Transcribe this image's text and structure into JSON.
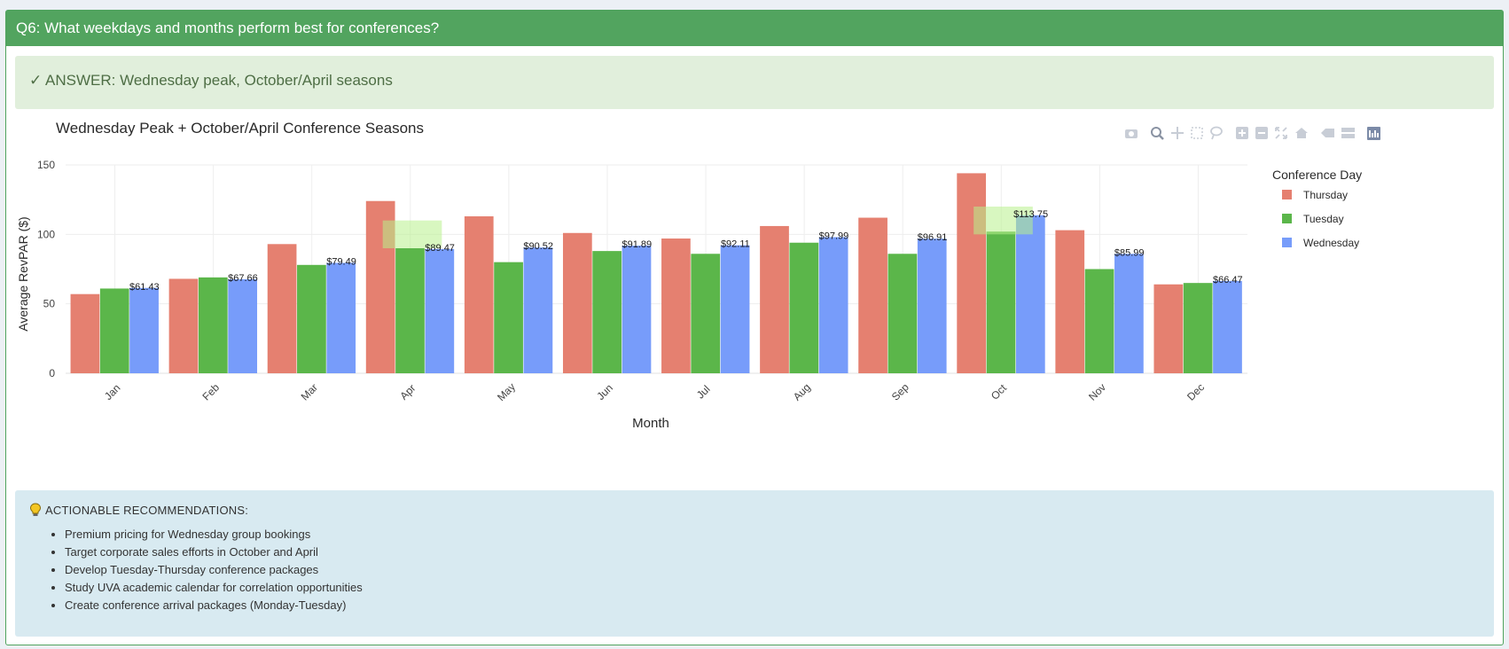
{
  "header": {
    "title": "Q6: What weekdays and months perform best for conferences?"
  },
  "answer": {
    "text": "✓ ANSWER: Wednesday peak, October/April seasons"
  },
  "chart_data": {
    "type": "bar",
    "title": "Wednesday Peak + October/April Conference Seasons",
    "xlabel": "Month",
    "ylabel": "Average RevPAR ($)",
    "ylim": [
      0,
      150
    ],
    "yticks": [
      0,
      50,
      100,
      150
    ],
    "categories": [
      "Jan",
      "Feb",
      "Mar",
      "Apr",
      "May",
      "Jun",
      "Jul",
      "Aug",
      "Sep",
      "Oct",
      "Nov",
      "Dec"
    ],
    "legend_title": "Conference Day",
    "legend_position": "right",
    "grid": true,
    "series": [
      {
        "name": "Thursday",
        "color": "#e58070",
        "values": [
          57,
          68,
          93,
          124,
          113,
          101,
          97,
          106,
          112,
          144,
          103,
          64
        ]
      },
      {
        "name": "Tuesday",
        "color": "#5bb64a",
        "values": [
          61,
          69,
          78,
          90,
          80,
          88,
          86,
          94,
          86,
          102,
          75,
          65
        ]
      },
      {
        "name": "Wednesday",
        "color": "#779cfa",
        "values": [
          61.43,
          67.66,
          79.49,
          89.47,
          90.52,
          91.89,
          92.11,
          97.99,
          96.91,
          113.75,
          85.99,
          66.47
        ]
      }
    ],
    "data_labels": [
      "$61.43",
      "$67.66",
      "$79.49",
      "$89.47",
      "$90.52",
      "$91.89",
      "$92.11",
      "$97.99",
      "$96.91",
      "$113.75",
      "$85.99",
      "$66.47"
    ],
    "highlights": [
      {
        "category": "Apr",
        "y0": 90,
        "y1": 110
      },
      {
        "category": "Oct",
        "y0": 100,
        "y1": 120
      }
    ]
  },
  "toolbar": {
    "icons": [
      "camera-icon",
      "zoom-icon",
      "pan-icon",
      "box-select-icon",
      "lasso-select-icon",
      "zoom-in-icon",
      "zoom-out-icon",
      "autoscale-icon",
      "reset-axes-icon",
      "spike-lines-icon",
      "compare-data-icon",
      "plotly-logo-icon"
    ]
  },
  "recommendations": {
    "title": "ACTIONABLE RECOMMENDATIONS:",
    "icon": "lightbulb-icon",
    "items": [
      "Premium pricing for Wednesday group bookings",
      "Target corporate sales efforts in October and April",
      "Develop Tuesday-Thursday conference packages",
      "Study UVA academic calendar for correlation opportunities",
      "Create conference arrival packages (Monday-Tuesday)"
    ]
  }
}
